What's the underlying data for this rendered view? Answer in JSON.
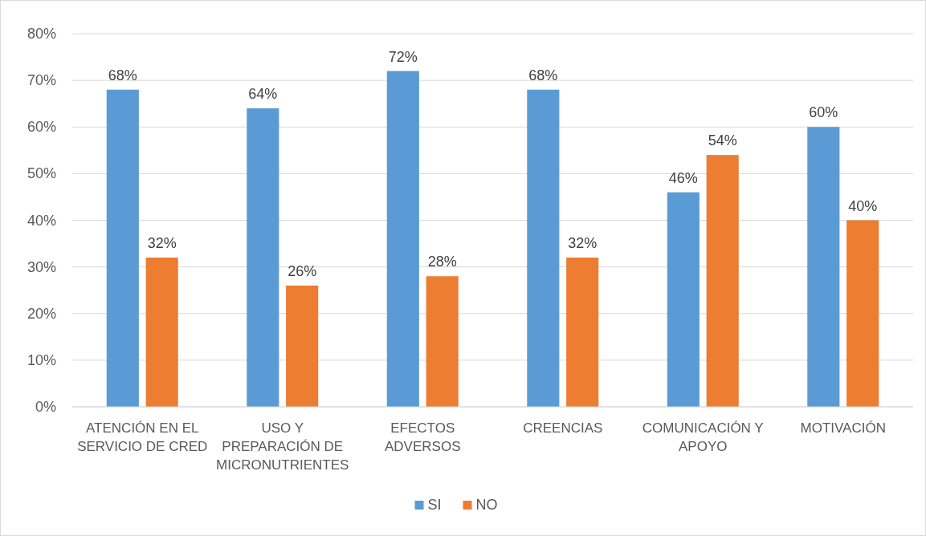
{
  "chart_data": {
    "type": "bar",
    "categories": [
      "ATENCIÓN EN EL SERVICIO DE CRED",
      "USO Y PREPARACIÓN DE MICRONUTRIENTES",
      "EFECTOS ADVERSOS",
      "CREENCIAS",
      "COMUNICACIÓN Y APOYO",
      "MOTIVACIÓN"
    ],
    "series": [
      {
        "name": "SI",
        "color": "#5b9bd5",
        "values": [
          68,
          64,
          72,
          68,
          46,
          60
        ],
        "value_labels": [
          "68%",
          "64%",
          "72%",
          "68%",
          "46%",
          "60%"
        ]
      },
      {
        "name": "NO",
        "color": "#ed7d31",
        "values": [
          32,
          26,
          28,
          32,
          54,
          40
        ],
        "value_labels": [
          "32%",
          "26%",
          "28%",
          "32%",
          "54%",
          "40%"
        ]
      }
    ],
    "ylim": [
      0,
      80
    ],
    "yticks": [
      {
        "value": 0,
        "label": "0%"
      },
      {
        "value": 10,
        "label": "10%"
      },
      {
        "value": 20,
        "label": "20%"
      },
      {
        "value": 30,
        "label": "30%"
      },
      {
        "value": 40,
        "label": "40%"
      },
      {
        "value": 50,
        "label": "50%"
      },
      {
        "value": 60,
        "label": "60%"
      },
      {
        "value": 70,
        "label": "70%"
      },
      {
        "value": 80,
        "label": "80%"
      }
    ],
    "grid": "y",
    "legend": "bottom"
  }
}
